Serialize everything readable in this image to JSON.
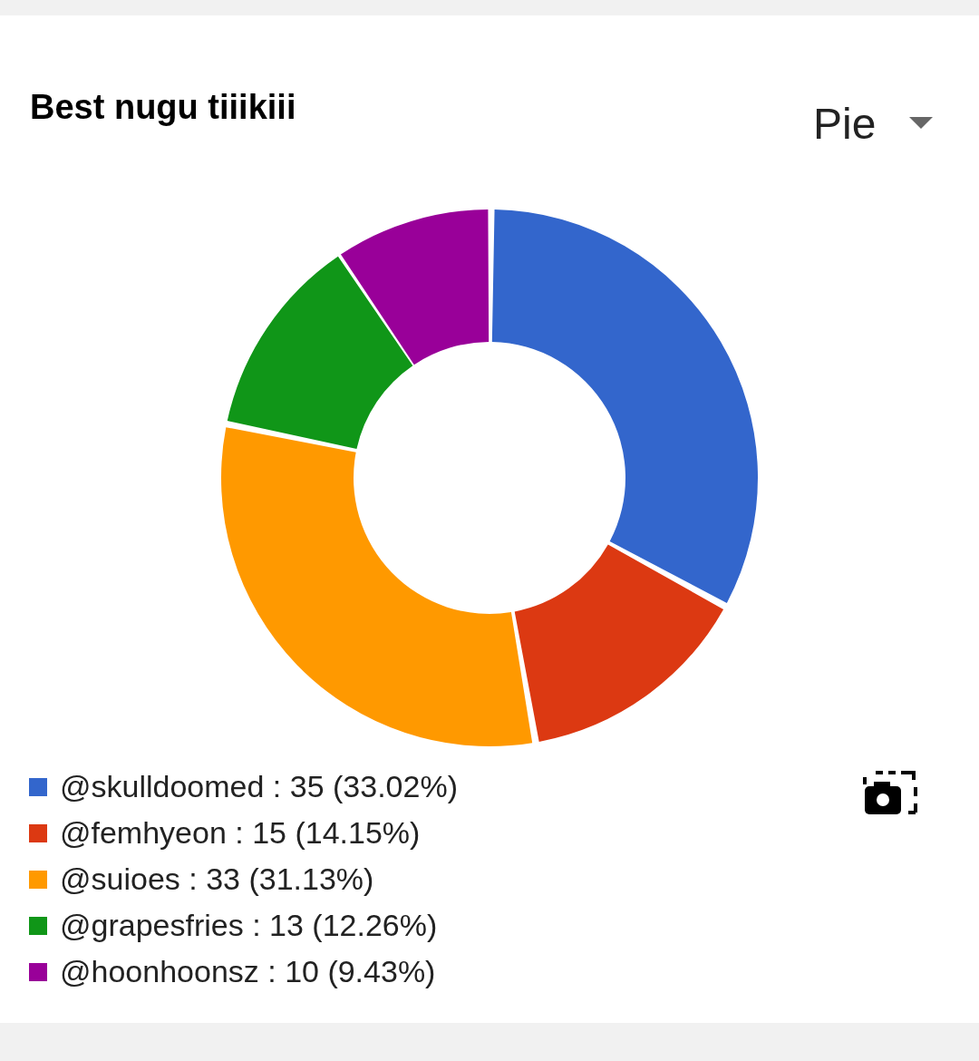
{
  "chart_data": {
    "type": "donut",
    "title": "Best nugu tiiikiii",
    "annotations": [
      "Pie"
    ],
    "categories": [
      "@skulldoomed",
      "@femhyeon",
      "@suioes",
      "@grapesfries",
      "@hoonhoonsz"
    ],
    "values": [
      35,
      15,
      33,
      13,
      10
    ],
    "colors": [
      "#3366cc",
      "#dc3912",
      "#ff9900",
      "#109618",
      "#990099"
    ],
    "value_labels": [
      "35 (33.02%)",
      "15 (14.15%)",
      "33 (31.13%)",
      "13 (12.26%)",
      "10 (9.43%)"
    ],
    "legend": "bottom"
  }
}
